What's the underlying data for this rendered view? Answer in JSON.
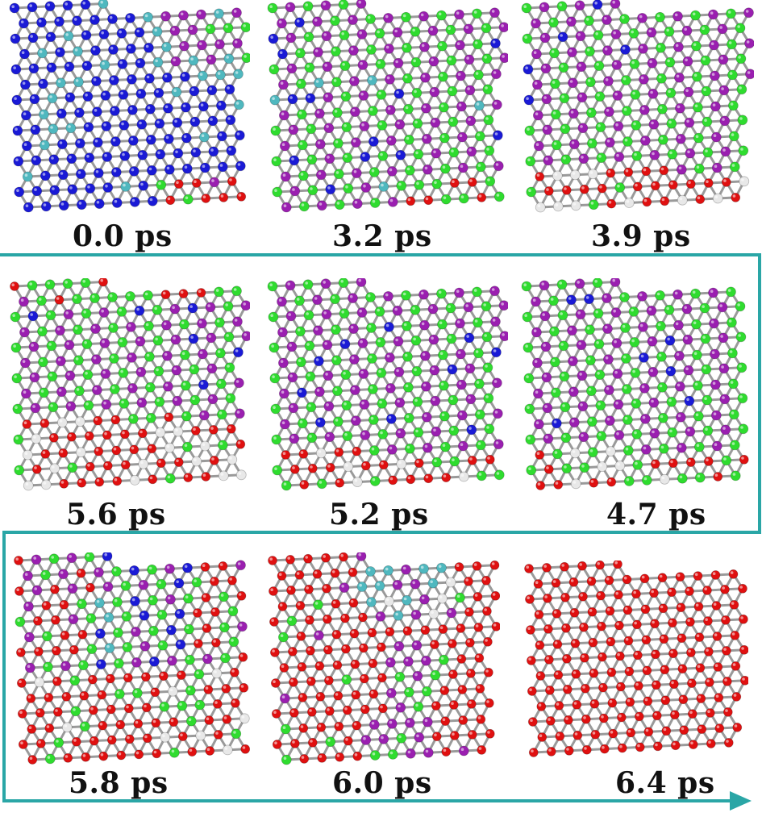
{
  "panels": [
    {
      "label": "0.0 ps",
      "composition": "early"
    },
    {
      "label": "3.2 ps",
      "composition": "mixed1"
    },
    {
      "label": "3.9 ps",
      "composition": "mixed2"
    },
    {
      "label": "5.6 ps",
      "composition": "mixed3"
    },
    {
      "label": "5.2 ps",
      "composition": "mixed2b"
    },
    {
      "label": "4.7 ps",
      "composition": "mixed2c"
    },
    {
      "label": "5.8 ps",
      "composition": "late1"
    },
    {
      "label": "6.0 ps",
      "composition": "late2"
    },
    {
      "label": "6.4 ps",
      "composition": "final"
    }
  ],
  "colors": {
    "background": "#ffffff",
    "bond": "#9a9a9a",
    "blue": "#1a1ad6",
    "cyan": "#4fb8bf",
    "purple": "#9a1fb0",
    "green": "#2fdc2f",
    "red": "#e01010",
    "white": "#e8e8e8",
    "arrow": "#2aa6a6"
  },
  "arrow": {
    "description": "serpentine time-order arrow"
  }
}
